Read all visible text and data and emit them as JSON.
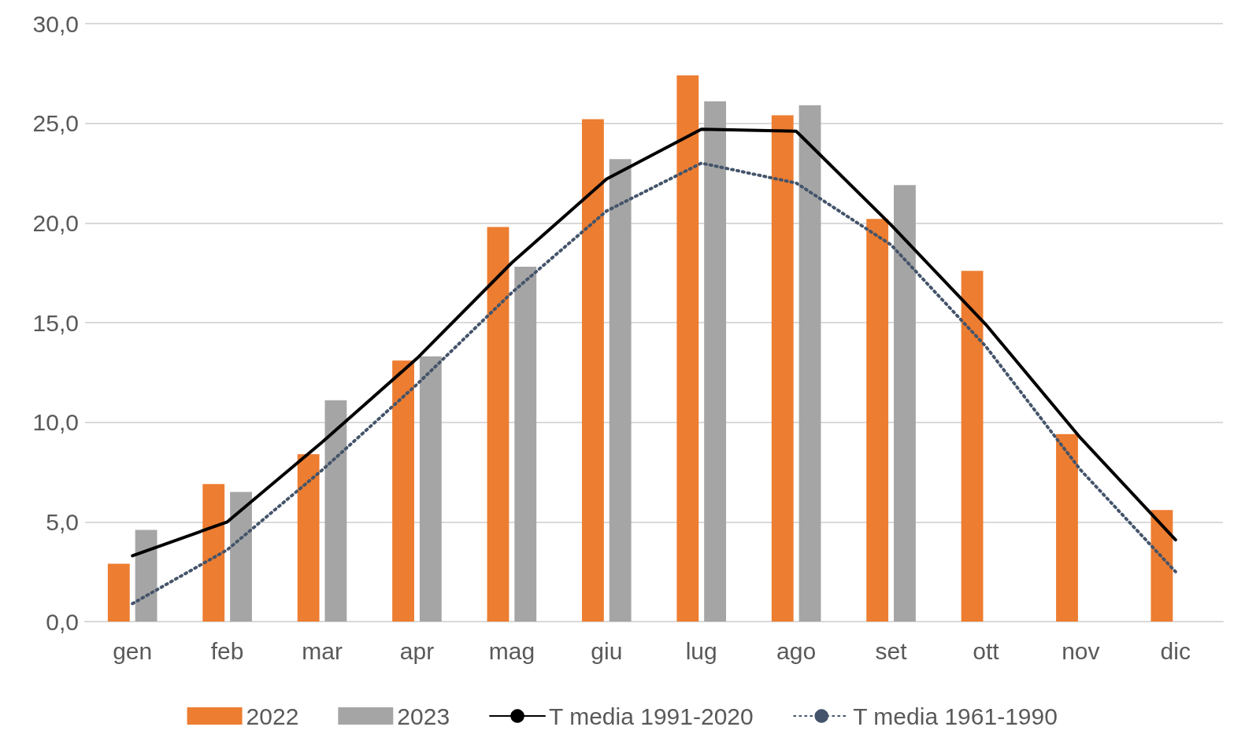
{
  "chart_data": {
    "type": "bar",
    "categories": [
      "gen",
      "feb",
      "mar",
      "apr",
      "mag",
      "giu",
      "lug",
      "ago",
      "set",
      "ott",
      "nov",
      "dic"
    ],
    "series": [
      {
        "name": "2022",
        "color": "#ed7d31",
        "values": [
          2.9,
          6.9,
          8.4,
          13.1,
          19.8,
          25.2,
          27.4,
          25.4,
          20.2,
          17.6,
          9.4,
          5.6
        ]
      },
      {
        "name": "2023",
        "color": "#a5a5a5",
        "values": [
          4.6,
          6.5,
          11.1,
          13.3,
          17.8,
          23.2,
          26.1,
          25.9,
          21.9,
          null,
          null,
          null
        ]
      },
      {
        "name": "T media 1991-2020",
        "type": "line",
        "color": "#000000",
        "line_style": "solid",
        "values": [
          3.3,
          5.0,
          9.0,
          13.2,
          18.0,
          22.2,
          24.7,
          24.6,
          19.9,
          14.9,
          9.2,
          4.1
        ]
      },
      {
        "name": "T media 1961-1990",
        "type": "line",
        "color": "#44546a",
        "line_style": "dotted",
        "values": [
          0.9,
          3.6,
          7.6,
          11.9,
          16.5,
          20.6,
          23.0,
          22.0,
          18.9,
          13.8,
          7.6,
          2.5
        ]
      }
    ],
    "ylim": [
      0,
      30
    ],
    "yticks": [
      {
        "value": 0,
        "label": "0,0"
      },
      {
        "value": 5,
        "label": "5,0"
      },
      {
        "value": 10,
        "label": "10,0"
      },
      {
        "value": 15,
        "label": "15,0"
      },
      {
        "value": 20,
        "label": "20,0"
      },
      {
        "value": 25,
        "label": "25,0"
      },
      {
        "value": 30,
        "label": "30,0"
      }
    ],
    "grid": "y",
    "legend": "bottom",
    "marker": "none"
  }
}
